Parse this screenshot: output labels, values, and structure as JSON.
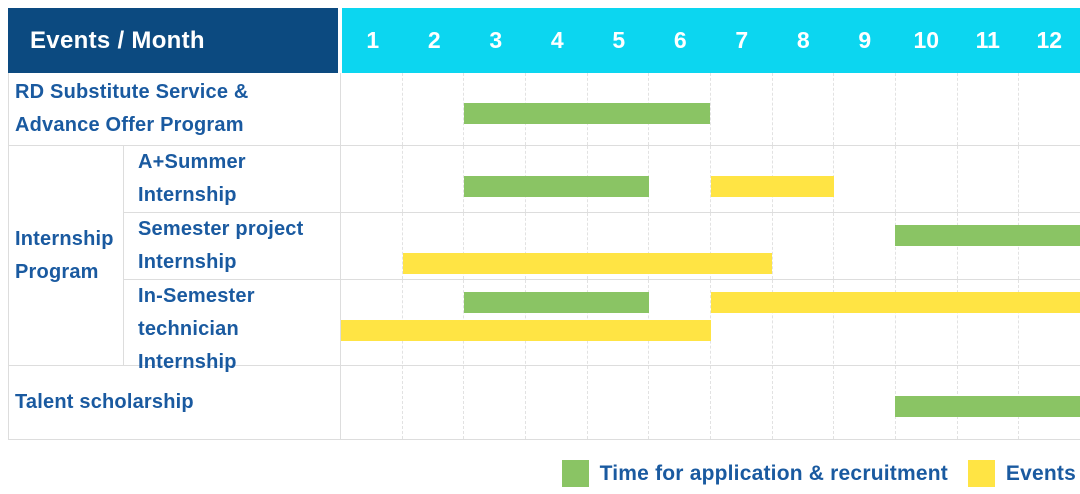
{
  "header": {
    "title": "Events / Month",
    "months": [
      "1",
      "2",
      "3",
      "4",
      "5",
      "6",
      "7",
      "8",
      "9",
      "10",
      "11",
      "12"
    ]
  },
  "colors": {
    "navy": "#0C4A80",
    "cyan": "#0CD6F0",
    "green": "#8AC464",
    "yellow": "#FFE444",
    "lblue": "#1A5AA0",
    "line": "#DDDDDD",
    "dline": "#E2E2E2"
  },
  "gantt": {
    "rows": [
      {
        "label_line1": "RD Substitute Service &",
        "label_line2": "Advance Offer Program",
        "bars": [
          {
            "type": "recruitment",
            "start": 3,
            "end": 6,
            "line": "center"
          }
        ]
      },
      {
        "group_label_line1": "Internship",
        "group_label_line2": "Program",
        "subrows": [
          {
            "label_line1": "A+Summer",
            "label_line2": "Internship",
            "bars": [
              {
                "type": "recruitment",
                "start": 3,
                "end": 5,
                "line": "center"
              },
              {
                "type": "events",
                "start": 7,
                "end": 8,
                "line": "center"
              }
            ]
          },
          {
            "label_line1": "Semester project",
            "label_line2": "Internship",
            "bars": [
              {
                "type": "recruitment",
                "start": 10,
                "end": 12,
                "line": "top"
              },
              {
                "type": "events",
                "start": 2,
                "end": 7,
                "line": "bottom"
              }
            ]
          },
          {
            "label_line1": "In-Semester",
            "label_line2": "technician Internship",
            "bars": [
              {
                "type": "recruitment",
                "start": 3,
                "end": 5,
                "line": "top"
              },
              {
                "type": "events",
                "start": 7,
                "end": 12,
                "line": "top"
              },
              {
                "type": "events",
                "start": 1,
                "end": 6,
                "line": "bottom"
              }
            ]
          }
        ]
      },
      {
        "label_line1": "Talent scholarship",
        "label_line2": "",
        "bars": [
          {
            "type": "recruitment",
            "start": 10,
            "end": 12,
            "line": "center"
          }
        ]
      }
    ]
  },
  "legend": {
    "recruitment_label": "Time for application & recruitment",
    "events_label": "Events"
  },
  "chart_data": {
    "type": "bar",
    "subtype": "gantt",
    "title": "Events / Month",
    "x_axis": {
      "label": "Month",
      "ticks": [
        1,
        2,
        3,
        4,
        5,
        6,
        7,
        8,
        9,
        10,
        11,
        12
      ],
      "range": [
        1,
        12
      ]
    },
    "grid": true,
    "legend_position": "bottom-right",
    "series_legend": [
      "Time for application & recruitment",
      "Events"
    ],
    "tasks": [
      {
        "name": "RD Substitute Service & Advance Offer Program",
        "group": null,
        "spans": [
          {
            "series": "Time for application & recruitment",
            "start_month": 3,
            "end_month": 6
          }
        ]
      },
      {
        "name": "A+Summer Internship",
        "group": "Internship Program",
        "spans": [
          {
            "series": "Time for application & recruitment",
            "start_month": 3,
            "end_month": 5
          },
          {
            "series": "Events",
            "start_month": 7,
            "end_month": 8
          }
        ]
      },
      {
        "name": "Semester project Internship",
        "group": "Internship Program",
        "spans": [
          {
            "series": "Time for application & recruitment",
            "start_month": 10,
            "end_month": 12
          },
          {
            "series": "Events",
            "start_month": 2,
            "end_month": 7
          }
        ]
      },
      {
        "name": "In-Semester technician Internship",
        "group": "Internship Program",
        "spans": [
          {
            "series": "Time for application & recruitment",
            "start_month": 3,
            "end_month": 5
          },
          {
            "series": "Events",
            "start_month": 7,
            "end_month": 12
          },
          {
            "series": "Events",
            "start_month": 1,
            "end_month": 6
          }
        ]
      },
      {
        "name": "Talent scholarship",
        "group": null,
        "spans": [
          {
            "series": "Time for application & recruitment",
            "start_month": 10,
            "end_month": 12
          }
        ]
      }
    ]
  }
}
